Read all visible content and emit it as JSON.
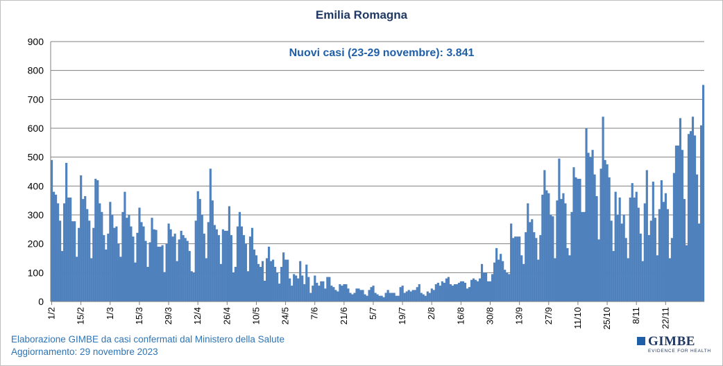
{
  "chart_data": {
    "type": "bar",
    "title": "Emilia Romagna",
    "annotation": "Nuovi casi (23-29 novembre): 3.841",
    "color": "#4f81bd",
    "ylim": [
      0,
      900
    ],
    "yticks": [
      0,
      100,
      200,
      300,
      400,
      500,
      600,
      700,
      800,
      900
    ],
    "grid": true,
    "xtick_labels": [
      "1/2",
      "15/2",
      "1/3",
      "15/3",
      "29/3",
      "12/4",
      "26/4",
      "10/5",
      "24/5",
      "7/6",
      "21/6",
      "5/7",
      "19/7",
      "2/8",
      "16/8",
      "30/8",
      "13/9",
      "27/9",
      "11/10",
      "25/10",
      "8/11",
      "22/11"
    ],
    "xtick_every": 14,
    "values": [
      490,
      380,
      370,
      340,
      280,
      175,
      340,
      480,
      360,
      360,
      278,
      278,
      155,
      255,
      437,
      355,
      365,
      320,
      280,
      150,
      255,
      425,
      420,
      340,
      310,
      230,
      180,
      235,
      345,
      300,
      255,
      260,
      200,
      155,
      310,
      380,
      290,
      300,
      260,
      225,
      135,
      238,
      325,
      275,
      260,
      210,
      120,
      205,
      290,
      250,
      248,
      190,
      190,
      195,
      102,
      200,
      270,
      250,
      225,
      235,
      140,
      215,
      245,
      230,
      220,
      210,
      175,
      105,
      100,
      280,
      382,
      355,
      300,
      235,
      150,
      275,
      460,
      350,
      265,
      250,
      230,
      130,
      250,
      245,
      245,
      330,
      230,
      100,
      120,
      260,
      310,
      260,
      230,
      200,
      105,
      225,
      255,
      180,
      160,
      130,
      120,
      140,
      72,
      150,
      190,
      140,
      145,
      120,
      100,
      62,
      120,
      170,
      145,
      145,
      80,
      55,
      95,
      90,
      80,
      140,
      90,
      60,
      128,
      85,
      30,
      55,
      90,
      65,
      55,
      70,
      70,
      45,
      85,
      85,
      55,
      50,
      40,
      35,
      60,
      55,
      60,
      60,
      45,
      30,
      25,
      30,
      45,
      45,
      40,
      40,
      25,
      20,
      40,
      50,
      55,
      30,
      25,
      20,
      20,
      15,
      30,
      40,
      30,
      30,
      30,
      20,
      20,
      50,
      55,
      30,
      35,
      40,
      35,
      40,
      40,
      50,
      60,
      30,
      25,
      20,
      35,
      30,
      45,
      40,
      60,
      65,
      55,
      70,
      65,
      80,
      85,
      60,
      55,
      60,
      60,
      65,
      70,
      70,
      65,
      45,
      50,
      75,
      80,
      75,
      70,
      80,
      130,
      100,
      100,
      70,
      70,
      95,
      135,
      185,
      145,
      165,
      140,
      110,
      100,
      95,
      270,
      220,
      225,
      225,
      225,
      160,
      130,
      240,
      340,
      275,
      285,
      240,
      220,
      145,
      230,
      370,
      455,
      385,
      375,
      300,
      295,
      150,
      350,
      495,
      355,
      375,
      340,
      185,
      160,
      310,
      465,
      430,
      425,
      425,
      310,
      310,
      600,
      515,
      500,
      525,
      440,
      365,
      215,
      460,
      640,
      490,
      475,
      430,
      280,
      175,
      380,
      300,
      360,
      270,
      300,
      220,
      150,
      360,
      410,
      360,
      380,
      325,
      235,
      140,
      340,
      455,
      230,
      280,
      415,
      290,
      160,
      320,
      420,
      345,
      375,
      320,
      150,
      220,
      445,
      540,
      540,
      635,
      525,
      355,
      195,
      580,
      590,
      640,
      575,
      440,
      270,
      610,
      750
    ]
  },
  "footer": {
    "line1": "Elaborazione GIMBE da casi confermati dal Ministero della Salute",
    "line2": "Aggiornamento: 29 novembre 2023"
  },
  "logo": {
    "name": "GIMBE",
    "tagline": "EVIDENCE FOR HEALTH"
  }
}
